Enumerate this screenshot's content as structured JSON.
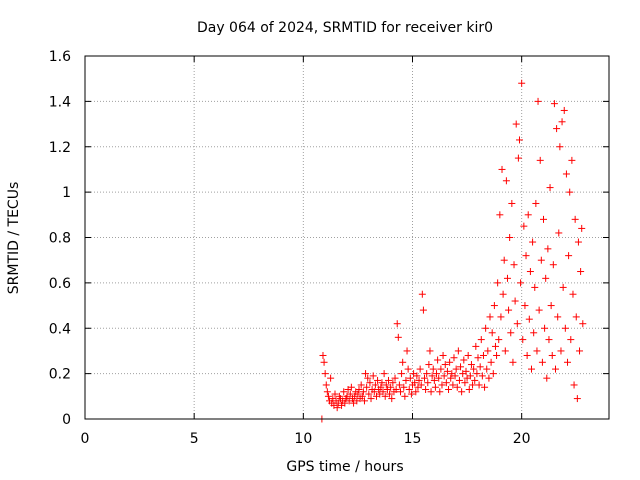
{
  "chart_data": {
    "type": "scatter",
    "title": "Day 064 of 2024, SRMTID for receiver kir0",
    "xlabel": "GPS time / hours",
    "ylabel": "SRMTID / TECUs",
    "xlim": [
      0,
      24
    ],
    "ylim": [
      0,
      1.6
    ],
    "xticks": [
      0,
      5,
      10,
      15,
      20
    ],
    "xtick_labels": [
      "0",
      "5",
      "10",
      "15",
      "20"
    ],
    "yticks": [
      0,
      0.2,
      0.4,
      0.6,
      0.8,
      1.0,
      1.2,
      1.4,
      1.6
    ],
    "ytick_labels": [
      "0",
      "0.2",
      "0.4",
      "0.6",
      "0.8",
      "1",
      "1.2",
      "1.4",
      "1.6"
    ],
    "grid": true,
    "marker": "+",
    "color": "#ff0000",
    "series": [
      {
        "name": "SRMTID",
        "points": [
          [
            10.85,
            0.0
          ],
          [
            10.9,
            0.28
          ],
          [
            10.95,
            0.25
          ],
          [
            11.0,
            0.2
          ],
          [
            11.05,
            0.15
          ],
          [
            11.1,
            0.12
          ],
          [
            11.15,
            0.1
          ],
          [
            11.2,
            0.08
          ],
          [
            11.25,
            0.18
          ],
          [
            11.3,
            0.07
          ],
          [
            11.35,
            0.09
          ],
          [
            11.4,
            0.06
          ],
          [
            11.45,
            0.11
          ],
          [
            11.5,
            0.08
          ],
          [
            11.55,
            0.05
          ],
          [
            11.6,
            0.07
          ],
          [
            11.65,
            0.1
          ],
          [
            11.7,
            0.09
          ],
          [
            11.75,
            0.06
          ],
          [
            11.8,
            0.08
          ],
          [
            11.85,
            0.12
          ],
          [
            11.9,
            0.07
          ],
          [
            11.95,
            0.09
          ],
          [
            12.0,
            0.1
          ],
          [
            12.05,
            0.13
          ],
          [
            12.1,
            0.08
          ],
          [
            12.15,
            0.11
          ],
          [
            12.2,
            0.14
          ],
          [
            12.25,
            0.09
          ],
          [
            12.3,
            0.07
          ],
          [
            12.35,
            0.1
          ],
          [
            12.4,
            0.12
          ],
          [
            12.45,
            0.08
          ],
          [
            12.5,
            0.11
          ],
          [
            12.55,
            0.13
          ],
          [
            12.6,
            0.09
          ],
          [
            12.65,
            0.15
          ],
          [
            12.7,
            0.1
          ],
          [
            12.75,
            0.12
          ],
          [
            12.8,
            0.08
          ],
          [
            12.85,
            0.2
          ],
          [
            12.9,
            0.14
          ],
          [
            12.95,
            0.18
          ],
          [
            13.0,
            0.11
          ],
          [
            13.05,
            0.16
          ],
          [
            13.1,
            0.09
          ],
          [
            13.15,
            0.13
          ],
          [
            13.2,
            0.19
          ],
          [
            13.25,
            0.12
          ],
          [
            13.3,
            0.15
          ],
          [
            13.35,
            0.1
          ],
          [
            13.4,
            0.17
          ],
          [
            13.45,
            0.13
          ],
          [
            13.5,
            0.11
          ],
          [
            13.55,
            0.14
          ],
          [
            13.6,
            0.16
          ],
          [
            13.65,
            0.12
          ],
          [
            13.7,
            0.2
          ],
          [
            13.75,
            0.1
          ],
          [
            13.8,
            0.15
          ],
          [
            13.85,
            0.13
          ],
          [
            13.9,
            0.17
          ],
          [
            13.95,
            0.11
          ],
          [
            14.0,
            0.14
          ],
          [
            14.05,
            0.09
          ],
          [
            14.1,
            0.16
          ],
          [
            14.15,
            0.12
          ],
          [
            14.2,
            0.18
          ],
          [
            14.25,
            0.13
          ],
          [
            14.3,
            0.42
          ],
          [
            14.35,
            0.36
          ],
          [
            14.4,
            0.15
          ],
          [
            14.45,
            0.12
          ],
          [
            14.5,
            0.2
          ],
          [
            14.55,
            0.25
          ],
          [
            14.6,
            0.14
          ],
          [
            14.65,
            0.1
          ],
          [
            14.7,
            0.17
          ],
          [
            14.75,
            0.3
          ],
          [
            14.8,
            0.22
          ],
          [
            14.85,
            0.13
          ],
          [
            14.9,
            0.18
          ],
          [
            14.95,
            0.11
          ],
          [
            15.0,
            0.15
          ],
          [
            15.05,
            0.2
          ],
          [
            15.1,
            0.16
          ],
          [
            15.15,
            0.12
          ],
          [
            15.2,
            0.19
          ],
          [
            15.25,
            0.14
          ],
          [
            15.3,
            0.17
          ],
          [
            15.35,
            0.22
          ],
          [
            15.4,
            0.15
          ],
          [
            15.45,
            0.55
          ],
          [
            15.5,
            0.48
          ],
          [
            15.55,
            0.18
          ],
          [
            15.6,
            0.13
          ],
          [
            15.65,
            0.2
          ],
          [
            15.7,
            0.16
          ],
          [
            15.75,
            0.24
          ],
          [
            15.8,
            0.3
          ],
          [
            15.85,
            0.12
          ],
          [
            15.9,
            0.19
          ],
          [
            15.95,
            0.22
          ],
          [
            16.0,
            0.17
          ],
          [
            16.05,
            0.14
          ],
          [
            16.1,
            0.2
          ],
          [
            16.15,
            0.26
          ],
          [
            16.2,
            0.18
          ],
          [
            16.25,
            0.12
          ],
          [
            16.3,
            0.22
          ],
          [
            16.35,
            0.15
          ],
          [
            16.4,
            0.28
          ],
          [
            16.45,
            0.19
          ],
          [
            16.5,
            0.24
          ],
          [
            16.55,
            0.16
          ],
          [
            16.6,
            0.21
          ],
          [
            16.65,
            0.13
          ],
          [
            16.7,
            0.25
          ],
          [
            16.75,
            0.18
          ],
          [
            16.8,
            0.2
          ],
          [
            16.85,
            0.15
          ],
          [
            16.9,
            0.27
          ],
          [
            16.95,
            0.19
          ],
          [
            17.0,
            0.22
          ],
          [
            17.05,
            0.14
          ],
          [
            17.1,
            0.3
          ],
          [
            17.15,
            0.17
          ],
          [
            17.2,
            0.23
          ],
          [
            17.25,
            0.12
          ],
          [
            17.3,
            0.2
          ],
          [
            17.35,
            0.26
          ],
          [
            17.4,
            0.16
          ],
          [
            17.45,
            0.21
          ],
          [
            17.5,
            0.18
          ],
          [
            17.55,
            0.28
          ],
          [
            17.6,
            0.13
          ],
          [
            17.65,
            0.19
          ],
          [
            17.7,
            0.24
          ],
          [
            17.75,
            0.15
          ],
          [
            17.8,
            0.22
          ],
          [
            17.85,
            0.17
          ],
          [
            17.9,
            0.32
          ],
          [
            17.95,
            0.2
          ],
          [
            18.0,
            0.27
          ],
          [
            18.05,
            0.15
          ],
          [
            18.1,
            0.23
          ],
          [
            18.15,
            0.35
          ],
          [
            18.2,
            0.19
          ],
          [
            18.25,
            0.28
          ],
          [
            18.3,
            0.14
          ],
          [
            18.35,
            0.4
          ],
          [
            18.4,
            0.22
          ],
          [
            18.45,
            0.3
          ],
          [
            18.5,
            0.18
          ],
          [
            18.55,
            0.45
          ],
          [
            18.6,
            0.25
          ],
          [
            18.65,
            0.38
          ],
          [
            18.7,
            0.2
          ],
          [
            18.75,
            0.5
          ],
          [
            18.8,
            0.32
          ],
          [
            18.85,
            0.28
          ],
          [
            18.9,
            0.6
          ],
          [
            18.95,
            0.35
          ],
          [
            19.0,
            0.9
          ],
          [
            19.05,
            0.45
          ],
          [
            19.1,
            1.1
          ],
          [
            19.15,
            0.55
          ],
          [
            19.2,
            0.7
          ],
          [
            19.25,
            0.3
          ],
          [
            19.3,
            1.05
          ],
          [
            19.35,
            0.62
          ],
          [
            19.4,
            0.48
          ],
          [
            19.45,
            0.8
          ],
          [
            19.5,
            0.38
          ],
          [
            19.55,
            0.95
          ],
          [
            19.6,
            0.25
          ],
          [
            19.65,
            0.68
          ],
          [
            19.7,
            0.52
          ],
          [
            19.75,
            1.3
          ],
          [
            19.8,
            0.42
          ],
          [
            19.85,
            1.15
          ],
          [
            19.9,
            1.23
          ],
          [
            19.95,
            0.6
          ],
          [
            20.0,
            1.48
          ],
          [
            20.05,
            0.35
          ],
          [
            20.1,
            0.85
          ],
          [
            20.15,
            0.5
          ],
          [
            20.2,
            0.72
          ],
          [
            20.25,
            0.28
          ],
          [
            20.3,
            0.9
          ],
          [
            20.35,
            0.44
          ],
          [
            20.4,
            0.65
          ],
          [
            20.45,
            0.22
          ],
          [
            20.5,
            0.78
          ],
          [
            20.55,
            0.38
          ],
          [
            20.6,
            0.58
          ],
          [
            20.65,
            0.95
          ],
          [
            20.7,
            0.3
          ],
          [
            20.75,
            1.4
          ],
          [
            20.8,
            0.48
          ],
          [
            20.85,
            1.14
          ],
          [
            20.9,
            0.7
          ],
          [
            20.95,
            0.25
          ],
          [
            21.0,
            0.88
          ],
          [
            21.05,
            0.4
          ],
          [
            21.1,
            0.62
          ],
          [
            21.15,
            0.18
          ],
          [
            21.2,
            0.75
          ],
          [
            21.25,
            0.35
          ],
          [
            21.3,
            1.02
          ],
          [
            21.35,
            0.5
          ],
          [
            21.4,
            0.28
          ],
          [
            21.45,
            0.68
          ],
          [
            21.5,
            1.39
          ],
          [
            21.55,
            0.22
          ],
          [
            21.6,
            1.28
          ],
          [
            21.65,
            0.45
          ],
          [
            21.7,
            0.82
          ],
          [
            21.75,
            1.2
          ],
          [
            21.8,
            0.3
          ],
          [
            21.85,
            1.31
          ],
          [
            21.9,
            0.58
          ],
          [
            21.95,
            1.36
          ],
          [
            22.0,
            0.4
          ],
          [
            22.05,
            1.08
          ],
          [
            22.1,
            0.25
          ],
          [
            22.15,
            0.72
          ],
          [
            22.2,
            1.0
          ],
          [
            22.25,
            0.35
          ],
          [
            22.3,
            1.14
          ],
          [
            22.35,
            0.55
          ],
          [
            22.4,
            0.15
          ],
          [
            22.45,
            0.88
          ],
          [
            22.5,
            0.45
          ],
          [
            22.55,
            0.09
          ],
          [
            22.6,
            0.78
          ],
          [
            22.65,
            0.3
          ],
          [
            22.7,
            0.65
          ],
          [
            22.75,
            0.84
          ],
          [
            22.8,
            0.42
          ]
        ]
      }
    ]
  }
}
